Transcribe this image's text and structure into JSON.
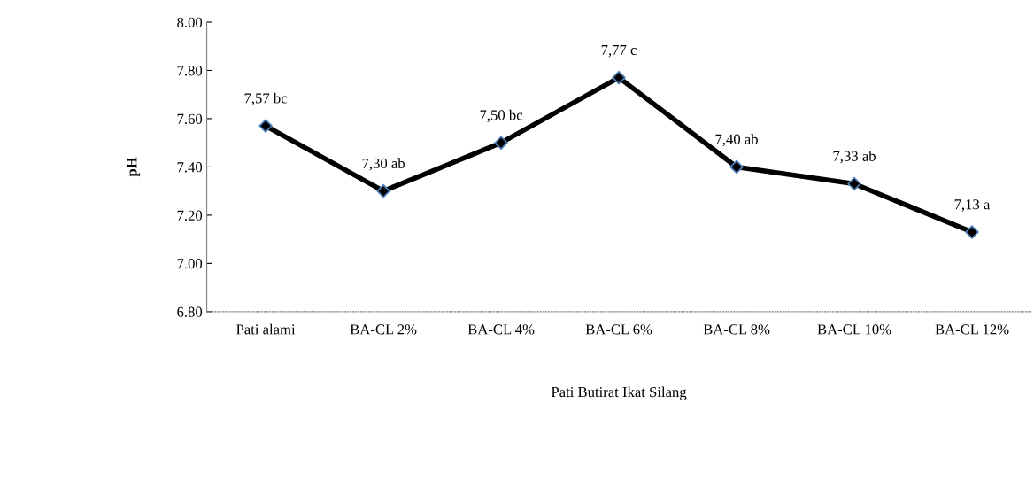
{
  "chart_data": {
    "type": "line",
    "xlabel": "Pati Butirat Ikat Silang",
    "ylabel": "pH",
    "categories": [
      "Pati alami",
      "BA-CL 2%",
      "BA-CL 4%",
      "BA-CL 6%",
      "BA-CL 8%",
      "BA-CL 10%",
      "BA-CL 12%"
    ],
    "series": [
      {
        "color": "#000000",
        "values": [
          7.57,
          7.3,
          7.5,
          7.77,
          7.4,
          7.33,
          7.13
        ],
        "value_labels": [
          "7,57 bc",
          "7,30 ab",
          "7,50 bc",
          "7,77 c",
          "7,40 ab",
          "7,33 ab",
          "7,13 a"
        ]
      }
    ],
    "ylim": [
      6.8,
      8.0
    ],
    "yticks": [
      {
        "value": 6.8,
        "label": "6.80"
      },
      {
        "value": 7.0,
        "label": "7.00"
      },
      {
        "value": 7.2,
        "label": "7.20"
      },
      {
        "value": 7.4,
        "label": "7.40"
      },
      {
        "value": 7.6,
        "label": "7.60"
      },
      {
        "value": 7.8,
        "label": "7.80"
      },
      {
        "value": 8.0,
        "label": "8.00"
      }
    ],
    "grid": false,
    "marker": "diamond",
    "line_style": "solid"
  }
}
